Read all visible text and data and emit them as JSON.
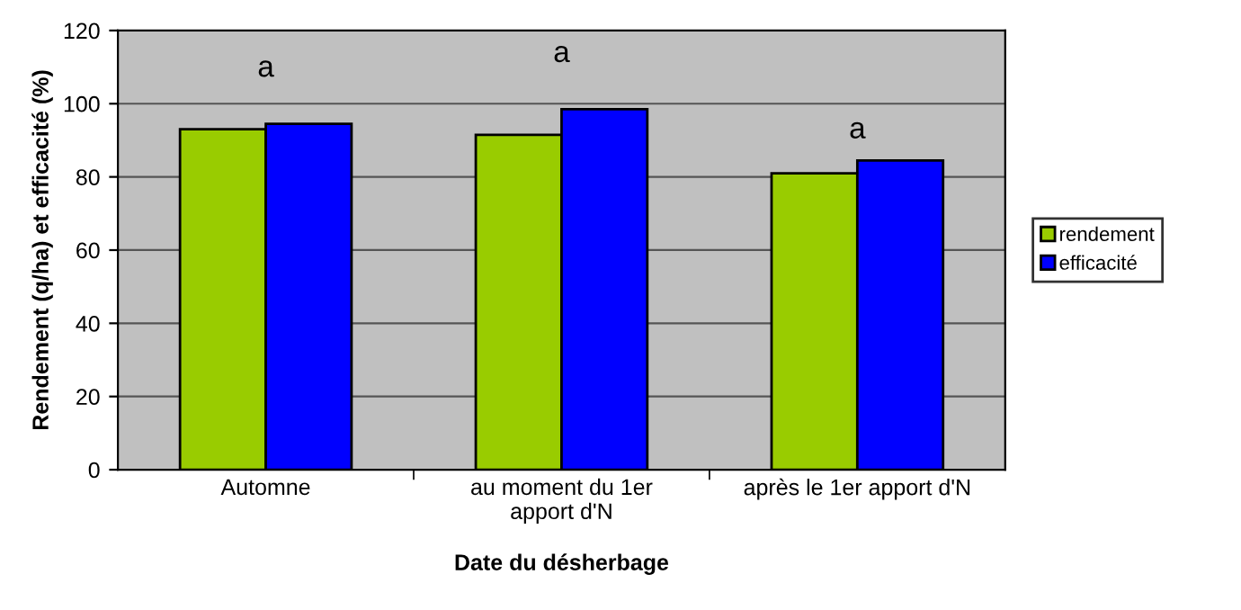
{
  "chart_data": {
    "type": "bar",
    "xlabel": "Date du désherbage",
    "ylabel": "Rendement (q/ha) et efficacité (%)",
    "categories": [
      "Automne",
      "au moment du 1er\napport d'N",
      "après le 1er apport d'N"
    ],
    "series": [
      {
        "name": "rendement",
        "color": "#99cc00",
        "values": [
          93,
          91.5,
          81
        ]
      },
      {
        "name": "efficacité",
        "color": "#0000ff",
        "values": [
          94.5,
          98.5,
          84.5
        ]
      }
    ],
    "annotations": [
      "a",
      "a",
      "a"
    ],
    "ylim": [
      0,
      120
    ],
    "yticks": [
      0,
      20,
      40,
      60,
      80,
      100,
      120
    ],
    "grid": "y",
    "legend": "right"
  }
}
